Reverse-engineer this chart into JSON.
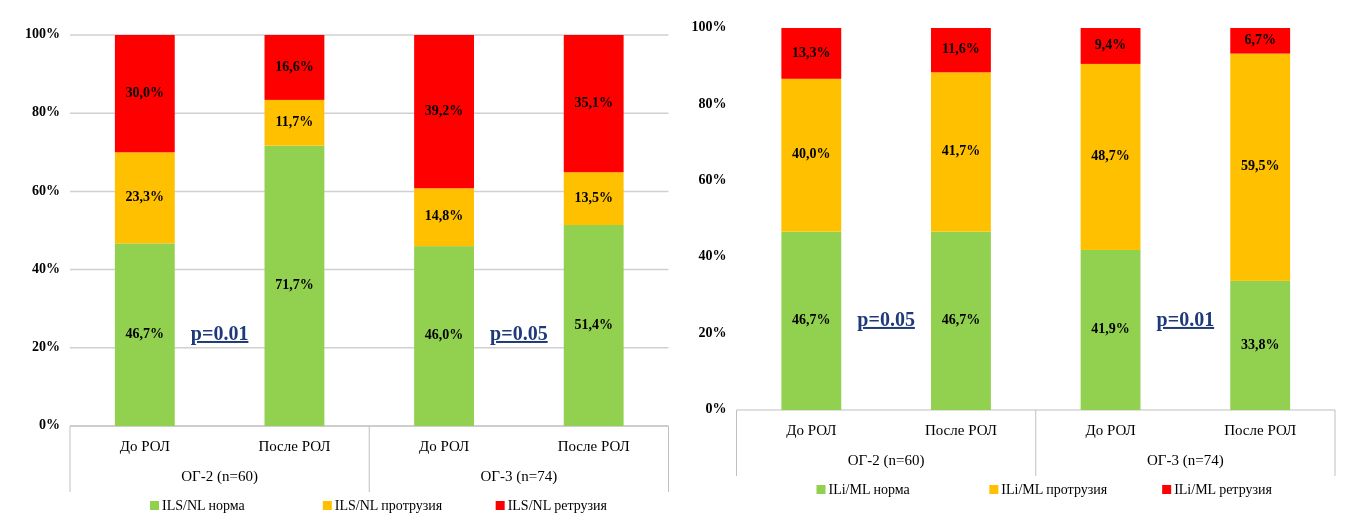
{
  "chart_data": [
    {
      "type": "bar",
      "stacked": true,
      "categories": [
        "До РОЛ",
        "После РОЛ",
        "До РОЛ",
        "После РОЛ"
      ],
      "ylim": [
        0,
        100
      ],
      "yticks": [
        {
          "value": 0,
          "label": "0%"
        },
        {
          "value": 20,
          "label": "20%"
        },
        {
          "value": 40,
          "label": "40%"
        },
        {
          "value": 60,
          "label": "60%"
        },
        {
          "value": 80,
          "label": "80%"
        },
        {
          "value": 100,
          "label": "100%"
        }
      ],
      "grid": "y",
      "legend": "bottom",
      "annotations": [
        "ОГ-2 (n=60)",
        "ОГ-3 (n=74)",
        "p=0.01",
        "p=0.05"
      ],
      "series": [
        {
          "name": "ILS/NL норма",
          "color": "#92d050",
          "values": [
            46.7,
            71.7,
            46.0,
            51.4
          ],
          "value_labels": [
            "46,7%",
            "71,7%",
            "46,0%",
            "51,4%"
          ]
        },
        {
          "name": "ILS/NL протрузия",
          "color": "#ffc000",
          "values": [
            23.3,
            11.7,
            14.8,
            13.5
          ],
          "value_labels": [
            "23,3%",
            "11,7%",
            "14,8%",
            "13,5%"
          ]
        },
        {
          "name": "ILS/NL ретрузия",
          "color": "#ff0000",
          "values": [
            30.0,
            16.6,
            39.2,
            35.1
          ],
          "value_labels": [
            "30,0%",
            "16,6%",
            "39,2%",
            "35,1%"
          ]
        }
      ]
    },
    {
      "type": "bar",
      "stacked": true,
      "categories": [
        "До РОЛ",
        "После РОЛ",
        "До РОЛ",
        "После РОЛ"
      ],
      "ylim": [
        0,
        100
      ],
      "yticks": [
        {
          "value": 0,
          "label": "0%"
        },
        {
          "value": 20,
          "label": "20%"
        },
        {
          "value": 40,
          "label": "40%"
        },
        {
          "value": 60,
          "label": "60%"
        },
        {
          "value": 80,
          "label": "80%"
        },
        {
          "value": 100,
          "label": "100%"
        }
      ],
      "legend": "bottom",
      "annotations": [
        "ОГ-2 (n=60)",
        "ОГ-3 (n=74)",
        "p=0.05",
        "p=0.01"
      ],
      "series": [
        {
          "name": "ILi/ML норма",
          "color": "#92d050",
          "values": [
            46.7,
            46.7,
            41.9,
            33.8
          ],
          "value_labels": [
            "46,7%",
            "46,7%",
            "41,9%",
            "33,8%"
          ]
        },
        {
          "name": "ILi/ML протрузия",
          "color": "#ffc000",
          "values": [
            40.0,
            41.7,
            48.7,
            59.5
          ],
          "value_labels": [
            "40,0%",
            "41,7%",
            "48,7%",
            "59,5%"
          ]
        },
        {
          "name": "ILi/ML ретрузия",
          "color": "#ff0000",
          "values": [
            13.3,
            11.6,
            9.4,
            6.7
          ],
          "value_labels": [
            "13,3%",
            "11,6%",
            "9,4%",
            "6,7%"
          ]
        }
      ]
    }
  ]
}
